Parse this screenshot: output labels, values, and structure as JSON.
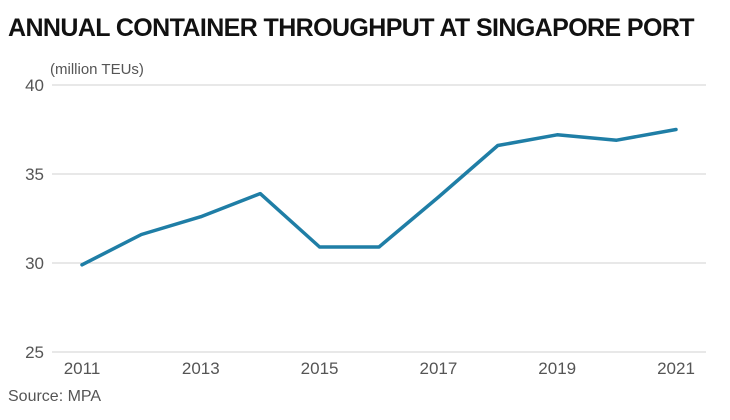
{
  "chart_data": {
    "type": "line",
    "title": "ANNUAL CONTAINER THROUGHPUT AT SINGAPORE PORT",
    "ylabel": "(million TEUs)",
    "xlabel": "",
    "source": "Source: MPA",
    "ylim": [
      25,
      40
    ],
    "yticks": [
      25,
      30,
      35,
      40
    ],
    "xlim": [
      2011,
      2021
    ],
    "xticks": [
      2011,
      2013,
      2015,
      2017,
      2019,
      2021
    ],
    "grid": true,
    "line_color": "#1f7ea6",
    "series": [
      {
        "x": [
          2011,
          2012,
          2013,
          2014,
          2015,
          2016,
          2017,
          2018,
          2019,
          2020,
          2021
        ],
        "values": [
          29.9,
          31.6,
          32.6,
          33.9,
          30.9,
          30.9,
          33.7,
          36.6,
          37.2,
          36.9,
          37.5
        ]
      }
    ]
  }
}
